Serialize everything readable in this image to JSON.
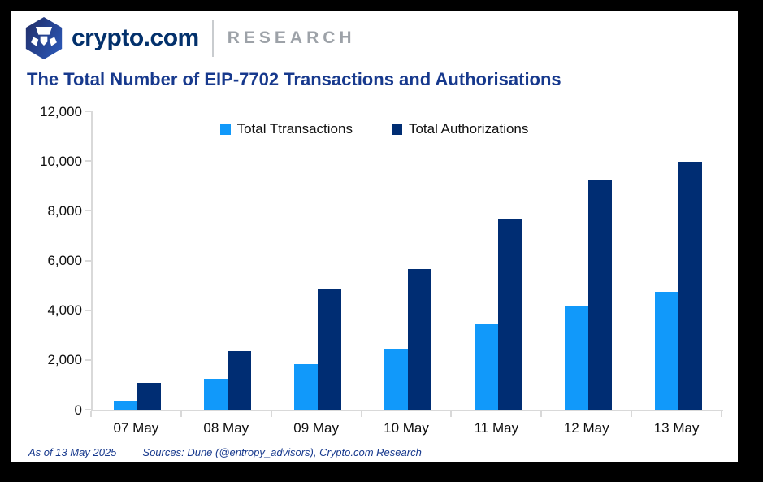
{
  "header": {
    "brand": "crypto.com",
    "research_label": "RESEARCH"
  },
  "title": "The Total Number of EIP-7702 Transactions and Authorisations",
  "footer": {
    "as_of": "As of 13 May 2025",
    "sources": "Sources: Dune (@entropy_advisors), Crypto.com Research"
  },
  "colors": {
    "transactions": "#1199FA",
    "authorizations": "#002D73",
    "title_text": "#17398D",
    "axis": "#D9D9D9",
    "brand_navy": "#03316C",
    "research_gray": "#9DA2A8"
  },
  "chart_data": {
    "type": "bar",
    "title": "The Total Number of EIP-7702 Transactions and Authorisations",
    "categories": [
      "07 May",
      "08 May",
      "09 May",
      "10 May",
      "11 May",
      "12 May",
      "13 May"
    ],
    "series": [
      {
        "name": "Total Ttransactions",
        "color": "#1199FA",
        "values": [
          350,
          1250,
          1840,
          2450,
          3450,
          4150,
          4740
        ]
      },
      {
        "name": "Total Authorizations",
        "color": "#002D73",
        "values": [
          1080,
          2370,
          4860,
          5670,
          7640,
          9210,
          9970
        ]
      }
    ],
    "xlabel": "",
    "ylabel": "",
    "ylim": [
      0,
      12000
    ],
    "y_ticks": [
      0,
      2000,
      4000,
      6000,
      8000,
      10000,
      12000
    ],
    "y_tick_labels": [
      "0",
      "2,000",
      "4,000",
      "6,000",
      "8,000",
      "10,000",
      "12,000"
    ],
    "grid": false,
    "legend_position": "top-center"
  }
}
